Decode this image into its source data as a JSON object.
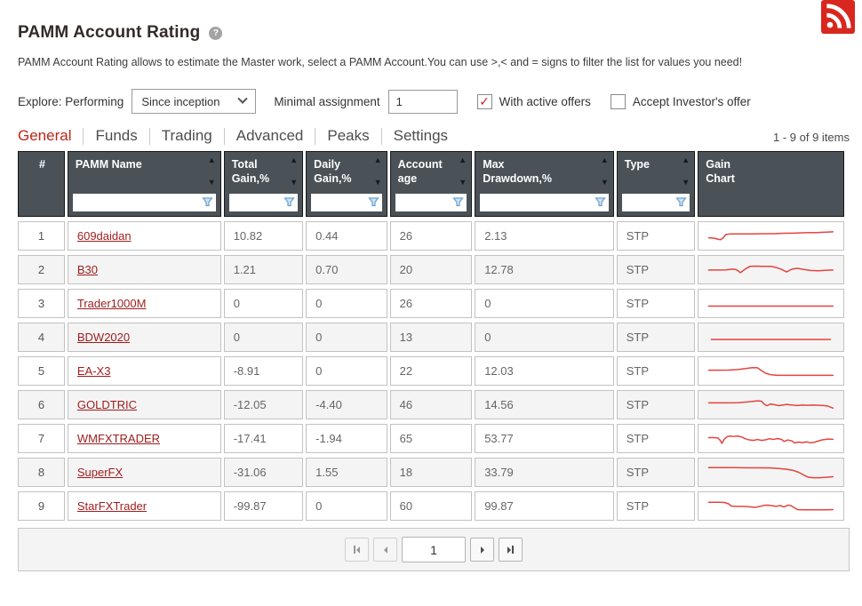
{
  "page": {
    "title": "PAMM Account Rating",
    "help_glyph": "?",
    "description": "PAMM Account Rating allows to estimate the Master work, select a PAMM Account.You can use >,< and = signs to filter the list for values you need!"
  },
  "filters": {
    "explore_label": "Explore: Performing",
    "period_select_value": "Since inception",
    "min_assignment_label": "Minimal assignment",
    "min_assignment_value": "1",
    "checkboxes": [
      {
        "label": "With active offers",
        "checked": true
      },
      {
        "label": "Accept Investor's offer",
        "checked": false
      }
    ]
  },
  "tabs": [
    {
      "label": "General",
      "active": true
    },
    {
      "label": "Funds",
      "active": false
    },
    {
      "label": "Trading",
      "active": false
    },
    {
      "label": "Advanced",
      "active": false
    },
    {
      "label": "Peaks",
      "active": false
    },
    {
      "label": "Settings",
      "active": false
    }
  ],
  "items_count": "1 - 9 of 9 items",
  "table": {
    "columns": [
      {
        "key": "num",
        "label": "#",
        "sortable": false,
        "filterable": false
      },
      {
        "key": "name",
        "label": "PAMM Name",
        "sortable": true,
        "filterable": true
      },
      {
        "key": "total_gain",
        "label": "Total\nGain,%",
        "sortable": true,
        "filterable": true
      },
      {
        "key": "daily_gain",
        "label": "Daily\nGain,%",
        "sortable": true,
        "filterable": true
      },
      {
        "key": "account_age",
        "label": "Account\nage",
        "sortable": true,
        "filterable": true
      },
      {
        "key": "max_drawdown",
        "label": "Max\nDrawdown,%",
        "sortable": true,
        "filterable": true
      },
      {
        "key": "type",
        "label": "Type",
        "sortable": true,
        "filterable": true
      },
      {
        "key": "chart",
        "label": "Gain\nChart",
        "sortable": false,
        "filterable": false
      }
    ],
    "rows": [
      {
        "num": "1",
        "name": "609daidan",
        "total_gain": "10.82",
        "daily_gain": "0.44",
        "account_age": "26",
        "max_drawdown": "2.13",
        "type": "STP",
        "spark": [
          [
            3,
            60
          ],
          [
            7,
            62
          ],
          [
            10,
            68
          ],
          [
            12,
            70
          ],
          [
            14,
            60
          ],
          [
            16,
            42
          ],
          [
            20,
            39
          ],
          [
            28,
            39
          ],
          [
            36,
            39
          ],
          [
            44,
            38
          ],
          [
            52,
            38
          ],
          [
            60,
            36
          ],
          [
            68,
            35
          ],
          [
            76,
            33
          ],
          [
            84,
            32
          ],
          [
            92,
            30
          ],
          [
            97,
            28
          ]
        ]
      },
      {
        "num": "2",
        "name": "B30",
        "total_gain": "1.21",
        "daily_gain": "0.70",
        "account_age": "20",
        "max_drawdown": "12.78",
        "type": "STP",
        "spark": [
          [
            3,
            52
          ],
          [
            10,
            52
          ],
          [
            16,
            51
          ],
          [
            21,
            47
          ],
          [
            24,
            50
          ],
          [
            27,
            66
          ],
          [
            31,
            45
          ],
          [
            34,
            33
          ],
          [
            38,
            31
          ],
          [
            44,
            32
          ],
          [
            50,
            32
          ],
          [
            54,
            38
          ],
          [
            58,
            48
          ],
          [
            62,
            62
          ],
          [
            66,
            47
          ],
          [
            70,
            43
          ],
          [
            75,
            49
          ],
          [
            80,
            54
          ],
          [
            86,
            56
          ],
          [
            92,
            53
          ],
          [
            97,
            52
          ]
        ]
      },
      {
        "num": "3",
        "name": "Trader1000M",
        "total_gain": "0",
        "daily_gain": "0",
        "account_age": "26",
        "max_drawdown": "0",
        "type": "STP",
        "spark": [
          [
            3,
            64
          ],
          [
            97,
            64
          ]
        ]
      },
      {
        "num": "4",
        "name": "BDW2020",
        "total_gain": "0",
        "daily_gain": "0",
        "account_age": "13",
        "max_drawdown": "0",
        "type": "STP",
        "spark": [
          [
            5,
            62
          ],
          [
            95,
            62
          ]
        ]
      },
      {
        "num": "5",
        "name": "EA-X3",
        "total_gain": "-8.91",
        "daily_gain": "0",
        "account_age": "22",
        "max_drawdown": "12.03",
        "type": "STP",
        "spark": [
          [
            3,
            46
          ],
          [
            10,
            46
          ],
          [
            18,
            45
          ],
          [
            25,
            42
          ],
          [
            31,
            37
          ],
          [
            36,
            32
          ],
          [
            40,
            33
          ],
          [
            43,
            48
          ],
          [
            46,
            62
          ],
          [
            50,
            70
          ],
          [
            55,
            73
          ],
          [
            62,
            73
          ],
          [
            70,
            73
          ],
          [
            80,
            73
          ],
          [
            90,
            73
          ],
          [
            97,
            73
          ]
        ]
      },
      {
        "num": "6",
        "name": "GOLDTRIC",
        "total_gain": "-12.05",
        "daily_gain": "-4.40",
        "account_age": "46",
        "max_drawdown": "14.56",
        "type": "STP",
        "spark": [
          [
            3,
            40
          ],
          [
            10,
            40
          ],
          [
            18,
            40
          ],
          [
            25,
            39
          ],
          [
            31,
            36
          ],
          [
            36,
            32
          ],
          [
            40,
            29
          ],
          [
            43,
            31
          ],
          [
            45,
            47
          ],
          [
            47,
            55
          ],
          [
            50,
            46
          ],
          [
            53,
            50
          ],
          [
            56,
            55
          ],
          [
            59,
            52
          ],
          [
            62,
            48
          ],
          [
            66,
            52
          ],
          [
            70,
            54
          ],
          [
            74,
            52
          ],
          [
            78,
            53
          ],
          [
            82,
            52
          ],
          [
            86,
            53
          ],
          [
            90,
            54
          ],
          [
            93,
            57
          ],
          [
            96,
            65
          ],
          [
            97,
            68
          ]
        ]
      },
      {
        "num": "7",
        "name": "WMFXTRADER",
        "total_gain": "-17.41",
        "daily_gain": "-1.94",
        "account_age": "65",
        "max_drawdown": "53.77",
        "type": "STP",
        "spark": [
          [
            3,
            45
          ],
          [
            7,
            45
          ],
          [
            10,
            47
          ],
          [
            12,
            62
          ],
          [
            13,
            76
          ],
          [
            15,
            52
          ],
          [
            17,
            40
          ],
          [
            19,
            37
          ],
          [
            22,
            39
          ],
          [
            25,
            37
          ],
          [
            28,
            42
          ],
          [
            31,
            52
          ],
          [
            34,
            58
          ],
          [
            37,
            60
          ],
          [
            40,
            55
          ],
          [
            43,
            60
          ],
          [
            46,
            57
          ],
          [
            49,
            51
          ],
          [
            52,
            55
          ],
          [
            55,
            50
          ],
          [
            58,
            54
          ],
          [
            60,
            66
          ],
          [
            63,
            58
          ],
          [
            66,
            63
          ],
          [
            68,
            74
          ],
          [
            71,
            69
          ],
          [
            74,
            72
          ],
          [
            77,
            68
          ],
          [
            80,
            73
          ],
          [
            83,
            70
          ],
          [
            86,
            63
          ],
          [
            89,
            57
          ],
          [
            93,
            53
          ],
          [
            97,
            54
          ]
        ]
      },
      {
        "num": "8",
        "name": "SuperFX",
        "total_gain": "-31.06",
        "daily_gain": "1.55",
        "account_age": "18",
        "max_drawdown": "33.79",
        "type": "STP",
        "spark": [
          [
            3,
            25
          ],
          [
            12,
            25
          ],
          [
            22,
            25
          ],
          [
            32,
            26
          ],
          [
            42,
            26
          ],
          [
            50,
            27
          ],
          [
            56,
            30
          ],
          [
            62,
            34
          ],
          [
            67,
            40
          ],
          [
            71,
            50
          ],
          [
            75,
            65
          ],
          [
            78,
            76
          ],
          [
            82,
            79
          ],
          [
            87,
            79
          ],
          [
            92,
            77
          ],
          [
            97,
            74
          ]
        ]
      },
      {
        "num": "9",
        "name": "StarFXTrader",
        "total_gain": "-99.87",
        "daily_gain": "0",
        "account_age": "60",
        "max_drawdown": "99.87",
        "type": "STP",
        "spark": [
          [
            3,
            30
          ],
          [
            10,
            30
          ],
          [
            15,
            31
          ],
          [
            18,
            38
          ],
          [
            20,
            50
          ],
          [
            24,
            52
          ],
          [
            29,
            52
          ],
          [
            34,
            54
          ],
          [
            38,
            57
          ],
          [
            42,
            52
          ],
          [
            45,
            46
          ],
          [
            48,
            45
          ],
          [
            51,
            48
          ],
          [
            54,
            52
          ],
          [
            57,
            47
          ],
          [
            60,
            55
          ],
          [
            63,
            45
          ],
          [
            65,
            47
          ],
          [
            68,
            60
          ],
          [
            70,
            69
          ],
          [
            74,
            70
          ],
          [
            80,
            70
          ],
          [
            86,
            70
          ],
          [
            92,
            70
          ],
          [
            97,
            69
          ]
        ]
      }
    ]
  },
  "pager": {
    "page": "1"
  },
  "colors": {
    "accent_red": "#bf2419",
    "spark_red": "#e2453e",
    "link_red": "#9e1c1c",
    "header_bg": "#4a5157",
    "funnel_blue": "#6ba0cf",
    "rss_red": "#d8271e"
  }
}
